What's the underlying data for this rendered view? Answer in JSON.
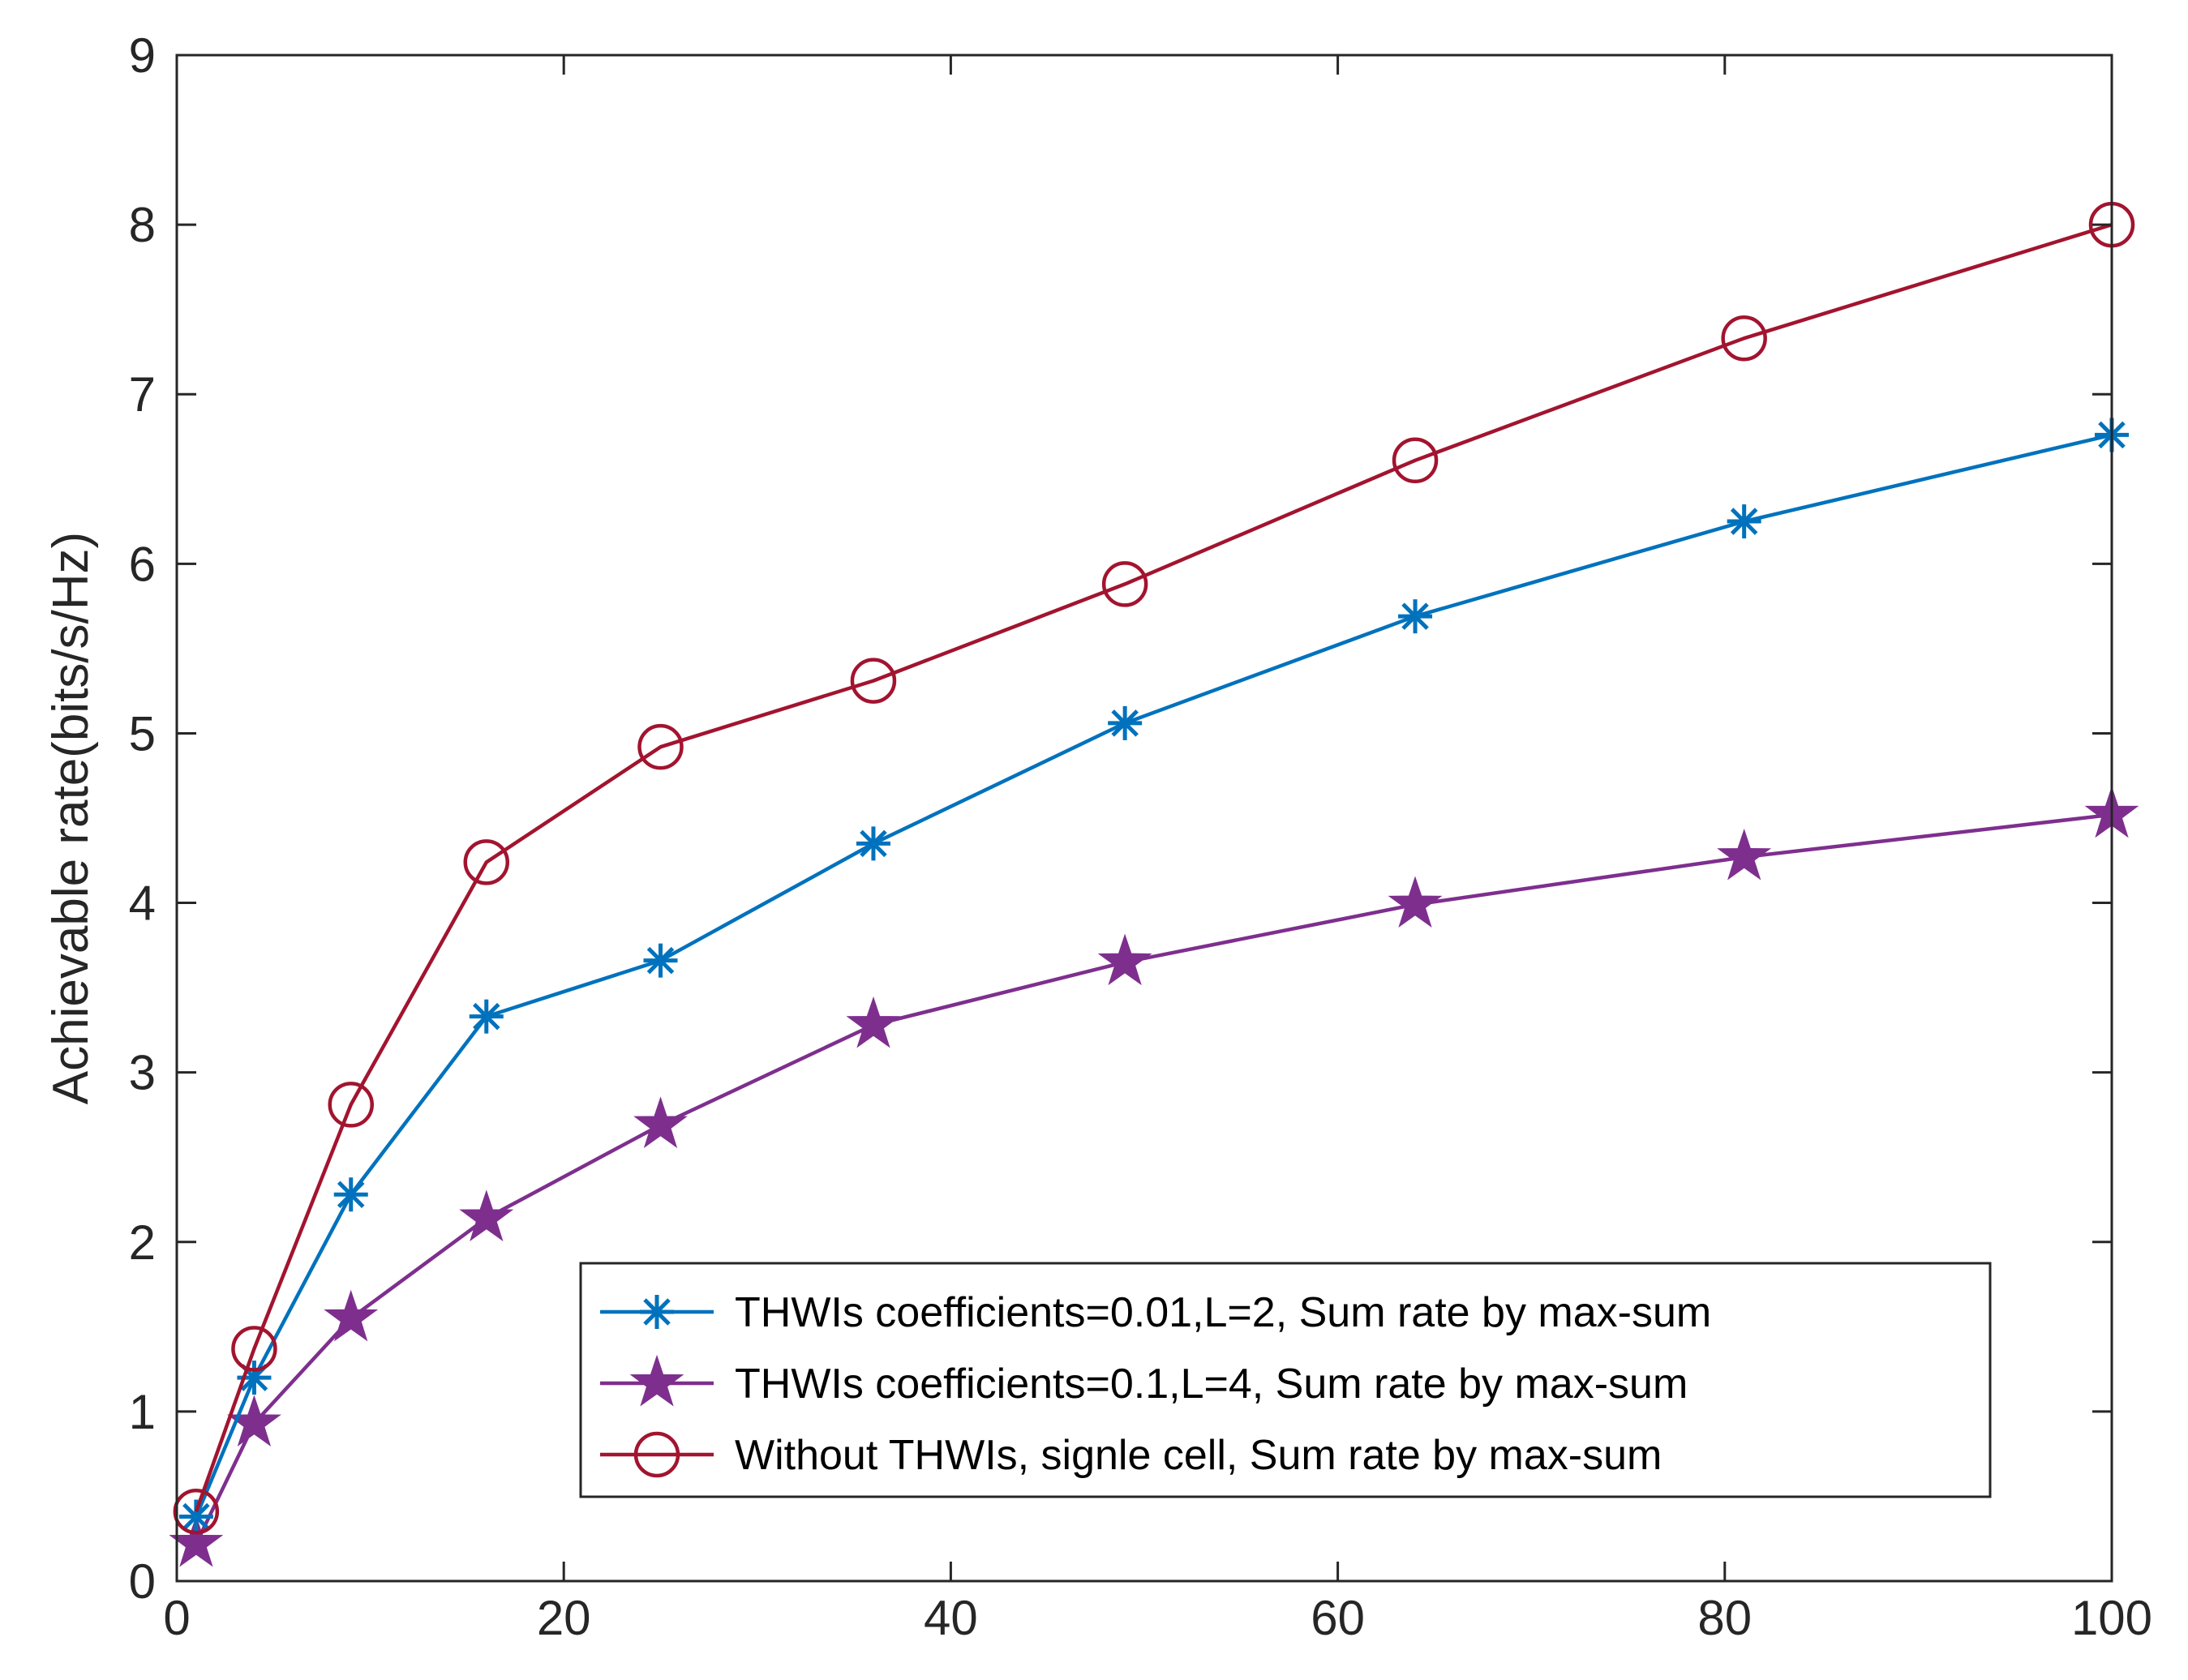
{
  "chart_data": {
    "type": "line",
    "title": "",
    "xlabel": "",
    "ylabel": "Achievable rate(bits/s/Hz)",
    "xlim": [
      0,
      100
    ],
    "ylim": [
      0,
      9
    ],
    "xticks": [
      0,
      20,
      40,
      60,
      80,
      100
    ],
    "yticks": [
      0,
      1,
      2,
      3,
      4,
      5,
      6,
      7,
      8,
      9
    ],
    "x": [
      1,
      4,
      9,
      16,
      25,
      36,
      49,
      64,
      81,
      100
    ],
    "grid": false,
    "legend_position": "bottom-right",
    "series": [
      {
        "name": "THWIs coefficients=0.01,L=2, Sum rate by max-sum",
        "color": "#0072BD",
        "marker": "asterisk",
        "values": [
          0.38,
          1.2,
          2.28,
          3.33,
          3.66,
          4.35,
          5.06,
          5.69,
          6.25,
          6.76
        ]
      },
      {
        "name": "THWIs coefficients=0.1,L=4, Sum rate by max-sum",
        "color": "#7E2F8E",
        "marker": "pentagram",
        "values": [
          0.22,
          0.93,
          1.55,
          2.14,
          2.69,
          3.28,
          3.65,
          3.99,
          4.27,
          4.52
        ]
      },
      {
        "name": "Without THWIs, signle cell, Sum rate by max-sum",
        "color": "#A2142F",
        "marker": "circle",
        "values": [
          0.41,
          1.37,
          2.81,
          4.24,
          4.92,
          5.31,
          5.88,
          6.61,
          7.33,
          8.0
        ]
      }
    ]
  }
}
